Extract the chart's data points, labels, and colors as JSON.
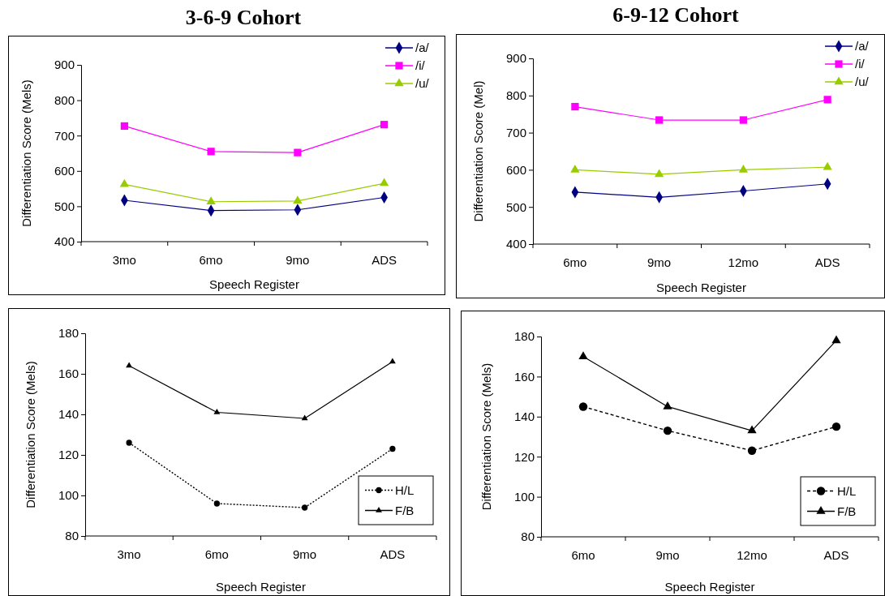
{
  "chart_data": [
    {
      "type": "line",
      "title": "3-6-9 Cohort",
      "xlabel": "Speech Register",
      "ylabel": "Differentiation Score (Mels)",
      "categories": [
        "3mo",
        "6mo",
        "9mo",
        "ADS"
      ],
      "ylim": [
        400,
        900
      ],
      "yticks": [
        400,
        500,
        600,
        700,
        800,
        900
      ],
      "legend": "top right",
      "grid": false,
      "series": [
        {
          "name": "/a/",
          "color": "#000080",
          "marker": "diamond",
          "values": [
            517,
            488,
            490,
            525
          ]
        },
        {
          "name": "/i/",
          "color": "#ff00ff",
          "marker": "square",
          "values": [
            727,
            655,
            652,
            731
          ]
        },
        {
          "name": "/u/",
          "color": "#99cc00",
          "marker": "triangle",
          "values": [
            562,
            513,
            515,
            565
          ]
        }
      ]
    },
    {
      "type": "line",
      "title": "6-9-12 Cohort",
      "xlabel": "Speech Register",
      "ylabel": "Differentiation Score (Mel)",
      "categories": [
        "6mo",
        "9mo",
        "12mo",
        "ADS"
      ],
      "ylim": [
        400,
        900
      ],
      "yticks": [
        400,
        500,
        600,
        700,
        800,
        900
      ],
      "legend": "top right",
      "grid": false,
      "series": [
        {
          "name": "/a/",
          "color": "#000080",
          "marker": "diamond",
          "values": [
            540,
            526,
            543,
            562
          ]
        },
        {
          "name": "/i/",
          "color": "#ff00ff",
          "marker": "square",
          "values": [
            770,
            734,
            734,
            789
          ]
        },
        {
          "name": "/u/",
          "color": "#99cc00",
          "marker": "triangle",
          "values": [
            600,
            588,
            600,
            607
          ]
        }
      ]
    },
    {
      "type": "line",
      "xlabel": "Speech Register",
      "ylabel": "Differentiation Score (Mels)",
      "categories": [
        "3mo",
        "6mo",
        "9mo",
        "ADS"
      ],
      "ylim": [
        80,
        180
      ],
      "yticks": [
        80,
        100,
        120,
        140,
        160,
        180
      ],
      "legend": "bottom right",
      "grid": false,
      "series": [
        {
          "name": "H/L",
          "color": "#000000",
          "marker": "circle",
          "line_style": "dotted",
          "values": [
            126,
            96,
            94,
            123
          ]
        },
        {
          "name": "F/B",
          "color": "#000000",
          "marker": "triangle",
          "line_style": "solid",
          "values": [
            164,
            141,
            138,
            166
          ]
        }
      ]
    },
    {
      "type": "line",
      "xlabel": "Speech Register",
      "ylabel": "Differentiation Score (Mels)",
      "categories": [
        "6mo",
        "9mo",
        "12mo",
        "ADS"
      ],
      "ylim": [
        80,
        180
      ],
      "yticks": [
        80,
        100,
        120,
        140,
        160,
        180
      ],
      "legend": "bottom right",
      "grid": false,
      "series": [
        {
          "name": "H/L",
          "color": "#000000",
          "marker": "circle",
          "line_style": "dashed",
          "values": [
            145,
            133,
            123,
            135
          ]
        },
        {
          "name": "F/B",
          "color": "#000000",
          "marker": "triangle",
          "line_style": "solid",
          "values": [
            170,
            145,
            133,
            178
          ]
        }
      ]
    }
  ]
}
